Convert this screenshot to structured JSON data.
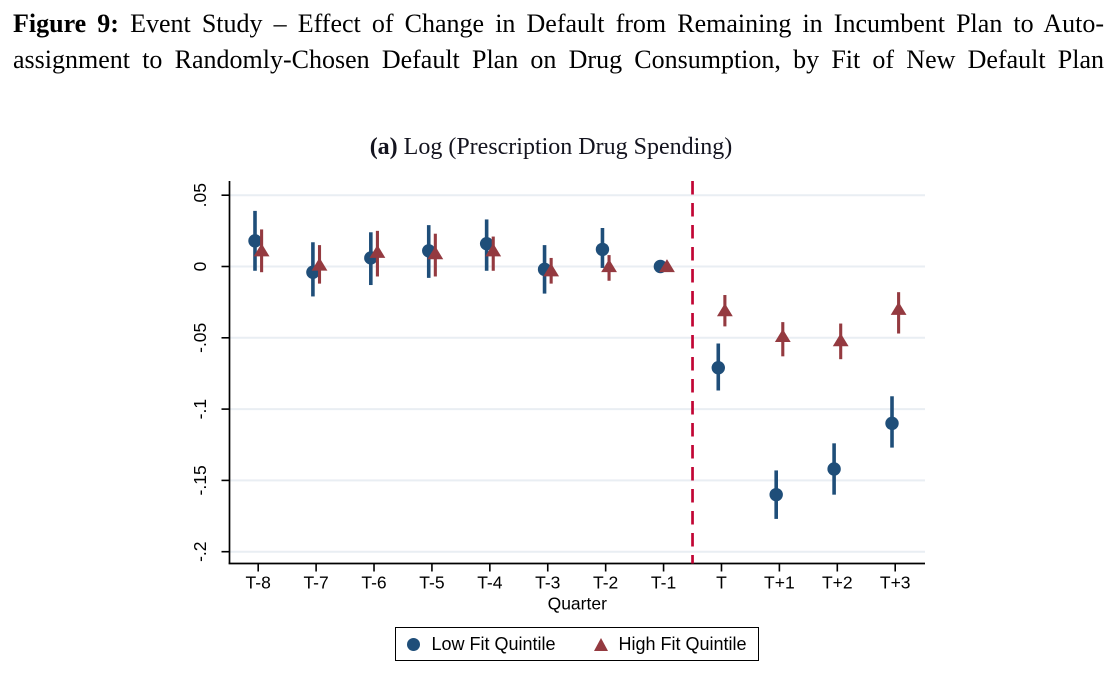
{
  "caption": {
    "line1_bold": "Figure 9:",
    "line1_rest": " Event Study – Effect of Change in Default from Remaining in Incumbent Plan to Auto-",
    "line2": "assignment to Randomly-Chosen Default Plan on Drug Consumption, by Fit of New Default Plan"
  },
  "panel": {
    "label_bold": "(a)",
    "label_rest": " Log (Prescription Drug Spending)"
  },
  "colors": {
    "low_fit": "#1f4e79",
    "high_fit": "#943a40",
    "reference_line": "#c10534",
    "gridline": "#e9eef3",
    "axis": "#000000",
    "background": "#ffffff"
  },
  "chart_data": {
    "type": "scatter",
    "title": "(a) Log (Prescription Drug Spending)",
    "xlabel": "Quarter",
    "ylabel": "",
    "grid": "horizontal",
    "legend_position": "bottom",
    "categories": [
      "T-8",
      "T-7",
      "T-6",
      "T-5",
      "T-4",
      "T-3",
      "T-2",
      "T-1",
      "T",
      "T+1",
      "T+2",
      "T+3"
    ],
    "ylim": [
      -0.21,
      0.06
    ],
    "yticks": [
      0.05,
      0,
      -0.05,
      -0.1,
      -0.15,
      -0.2
    ],
    "ytick_labels": [
      ".05",
      "0",
      "-.05",
      "-.1",
      "-.15",
      "-.2"
    ],
    "reference_line_between": [
      "T-1",
      "T"
    ],
    "series": [
      {
        "name": "Low Fit Quintile",
        "marker": "circle",
        "color": "#1f4e79",
        "values": [
          0.018,
          -0.004,
          0.006,
          0.011,
          0.016,
          -0.002,
          0.012,
          0.0,
          -0.071,
          -0.16,
          -0.142,
          -0.11
        ],
        "ci_high": [
          0.039,
          0.017,
          0.024,
          0.029,
          0.033,
          0.015,
          0.027,
          0.0,
          -0.054,
          -0.143,
          -0.124,
          -0.091
        ],
        "ci_low": [
          -0.003,
          -0.021,
          -0.013,
          -0.008,
          -0.003,
          -0.019,
          -0.001,
          0.0,
          -0.087,
          -0.177,
          -0.16,
          -0.127
        ]
      },
      {
        "name": "High Fit Quintile",
        "marker": "triangle",
        "color": "#943a40",
        "values": [
          0.011,
          0.001,
          0.01,
          0.009,
          0.011,
          -0.003,
          0.0,
          0.0,
          -0.031,
          -0.049,
          -0.052,
          -0.03
        ],
        "ci_high": [
          0.026,
          0.015,
          0.025,
          0.023,
          0.021,
          0.006,
          0.008,
          0.0,
          -0.02,
          -0.039,
          -0.04,
          -0.018
        ],
        "ci_low": [
          -0.004,
          -0.012,
          -0.007,
          -0.007,
          -0.003,
          -0.012,
          -0.01,
          0.0,
          -0.042,
          -0.063,
          -0.065,
          -0.047
        ]
      }
    ]
  },
  "legend": {
    "items": [
      {
        "label": "Low Fit Quintile",
        "marker": "circle",
        "color": "#1f4e79"
      },
      {
        "label": "High Fit Quintile",
        "marker": "triangle",
        "color": "#943a40"
      }
    ]
  }
}
